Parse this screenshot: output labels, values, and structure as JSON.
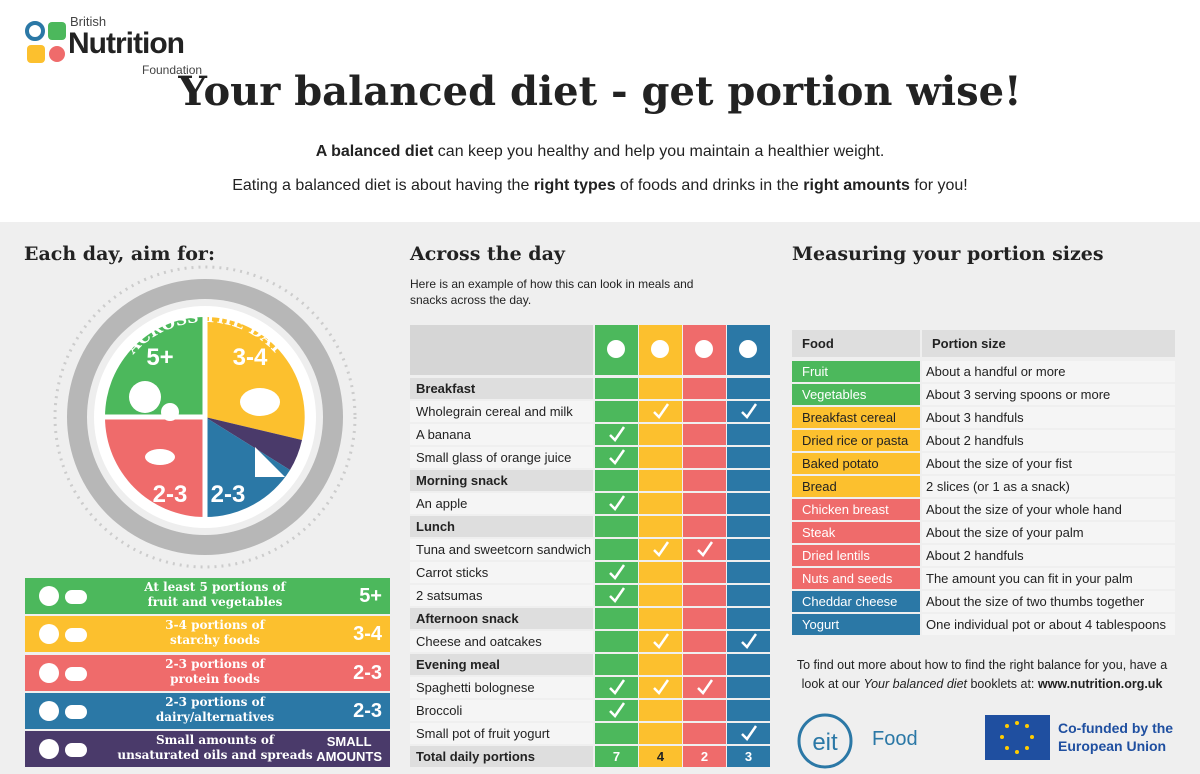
{
  "header": {
    "logo": [
      "British",
      "Nutrition",
      "Foundation"
    ],
    "title": "Your balanced diet - get portion wise!",
    "intro": [
      {
        "segments": [
          {
            "text": "A balanced diet",
            "style": "bold"
          },
          {
            "text": " can keep you healthy and help you maintain a healthier weight.",
            "style": "normal"
          }
        ]
      },
      {
        "segments": [
          {
            "text": "Eating a balanced diet is about having the ",
            "style": "normal"
          },
          {
            "text": "right types",
            "style": "bold"
          },
          {
            "text": " of foods and drinks in the ",
            "style": "normal"
          },
          {
            "text": "right amounts",
            "style": "bold"
          },
          {
            "text": " for you!",
            "style": "normal"
          }
        ]
      }
    ]
  },
  "left": {
    "heading": "Each day, aim for:",
    "wheel": {
      "arc_text": "ACROSS THE DAY",
      "labels": [
        "5+",
        "3-4",
        "2-3",
        "2-3"
      ]
    },
    "legend": [
      {
        "lines": [
          "At least 5 portions of",
          "fruit and vegetables"
        ],
        "amount": [
          "5+"
        ],
        "color": "#4cb85c"
      },
      {
        "lines": [
          "3-4 portions of",
          "starchy foods"
        ],
        "amount": [
          "3-4"
        ],
        "color": "#fcc02e"
      },
      {
        "lines": [
          "2-3 portions of",
          "protein foods"
        ],
        "amount": [
          "2-3"
        ],
        "color": "#ef6b6b"
      },
      {
        "lines": [
          "2-3 portions of",
          "dairy/alternatives"
        ],
        "amount": [
          "2-3"
        ],
        "color": "#2b78a6"
      },
      {
        "lines": [
          "Small amounts of",
          "unsaturated oils and spreads"
        ],
        "amount": [
          "SMALL",
          "AMOUNTS"
        ],
        "color": "#4a3a6a"
      }
    ]
  },
  "middle": {
    "heading": "Across the day",
    "description": [
      "Here is an example of how this can look in meals and",
      "snacks across the day."
    ],
    "table": {
      "columns": [
        {
          "color": "#4cb85c",
          "text": "#fff"
        },
        {
          "color": "#fcc02e",
          "text": "#222"
        },
        {
          "color": "#ef6b6b",
          "text": "#fff"
        },
        {
          "color": "#2b78a6",
          "text": "#fff"
        }
      ],
      "rows": [
        {
          "name": "Breakfast",
          "heading": true,
          "checks": [
            false,
            false,
            false,
            false
          ]
        },
        {
          "name": "Wholegrain cereal and milk",
          "heading": false,
          "checks": [
            false,
            true,
            false,
            true
          ]
        },
        {
          "name": "A banana",
          "heading": false,
          "checks": [
            true,
            false,
            false,
            false
          ]
        },
        {
          "name": "Small glass of orange juice",
          "heading": false,
          "checks": [
            true,
            false,
            false,
            false
          ]
        },
        {
          "name": "Morning snack",
          "heading": true,
          "checks": [
            false,
            false,
            false,
            false
          ]
        },
        {
          "name": "An apple",
          "heading": false,
          "checks": [
            true,
            false,
            false,
            false
          ]
        },
        {
          "name": "Lunch",
          "heading": true,
          "checks": [
            false,
            false,
            false,
            false
          ]
        },
        {
          "name": "Tuna and sweetcorn sandwich",
          "heading": false,
          "checks": [
            false,
            true,
            true,
            false
          ]
        },
        {
          "name": "Carrot sticks",
          "heading": false,
          "checks": [
            true,
            false,
            false,
            false
          ]
        },
        {
          "name": "2 satsumas",
          "heading": false,
          "checks": [
            true,
            false,
            false,
            false
          ]
        },
        {
          "name": "Afternoon snack",
          "heading": true,
          "checks": [
            false,
            false,
            false,
            false
          ]
        },
        {
          "name": "Cheese and oatcakes",
          "heading": false,
          "checks": [
            false,
            true,
            false,
            true
          ]
        },
        {
          "name": "Evening meal",
          "heading": true,
          "checks": [
            false,
            false,
            false,
            false
          ]
        },
        {
          "name": "Spaghetti bolognese",
          "heading": false,
          "checks": [
            true,
            true,
            true,
            false
          ]
        },
        {
          "name": "Broccoli",
          "heading": false,
          "checks": [
            true,
            false,
            false,
            false
          ]
        },
        {
          "name": "Small pot of fruit yogurt",
          "heading": false,
          "checks": [
            false,
            false,
            false,
            true
          ]
        }
      ],
      "total": {
        "name": "Total daily portions",
        "values": [
          7,
          4,
          2,
          3
        ]
      }
    }
  },
  "right": {
    "heading": "Measuring your portion sizes",
    "table": {
      "header": [
        "Food",
        "Portion size"
      ],
      "rows": [
        {
          "food": "Fruit",
          "portion": "About a handful or more",
          "group": 0
        },
        {
          "food": "Vegetables",
          "portion": "About 3 serving spoons or more",
          "group": 0
        },
        {
          "food": "Breakfast cereal",
          "portion": "About 3 handfuls",
          "group": 1
        },
        {
          "food": "Dried rice or pasta",
          "portion": "About 2 handfuls",
          "group": 1
        },
        {
          "food": "Baked potato",
          "portion": "About the size of your fist",
          "group": 1
        },
        {
          "food": "Bread",
          "portion": "2 slices (or 1 as a snack)",
          "group": 1
        },
        {
          "food": "Chicken breast",
          "portion": "About the size of your whole hand",
          "group": 2
        },
        {
          "food": "Steak",
          "portion": "About the size of your palm",
          "group": 2
        },
        {
          "food": "Dried lentils",
          "portion": "About 2 handfuls",
          "group": 2
        },
        {
          "food": "Nuts and seeds",
          "portion": "The amount you can fit in your palm",
          "group": 2
        },
        {
          "food": "Cheddar cheese",
          "portion": "About the size of two thumbs together",
          "group": 3
        },
        {
          "food": "Yogurt",
          "portion": "One individual pot or about 4 tablespoons",
          "group": 3
        }
      ]
    },
    "footer": {
      "lines": [
        {
          "segments": [
            {
              "text": "To find out more about how to find the right balance for you, have a",
              "style": "normal"
            }
          ]
        },
        {
          "segments": [
            {
              "text": "look at our ",
              "style": "normal"
            },
            {
              "text": "Your balanced diet",
              "style": "italic"
            },
            {
              "text": " booklets at: ",
              "style": "normal"
            },
            {
              "text": "www.nutrition.org.uk",
              "style": "bold"
            }
          ]
        }
      ]
    },
    "logos": {
      "eit": "eit",
      "food": "Food",
      "eu": [
        "Co-funded by the",
        "European Union"
      ]
    }
  }
}
